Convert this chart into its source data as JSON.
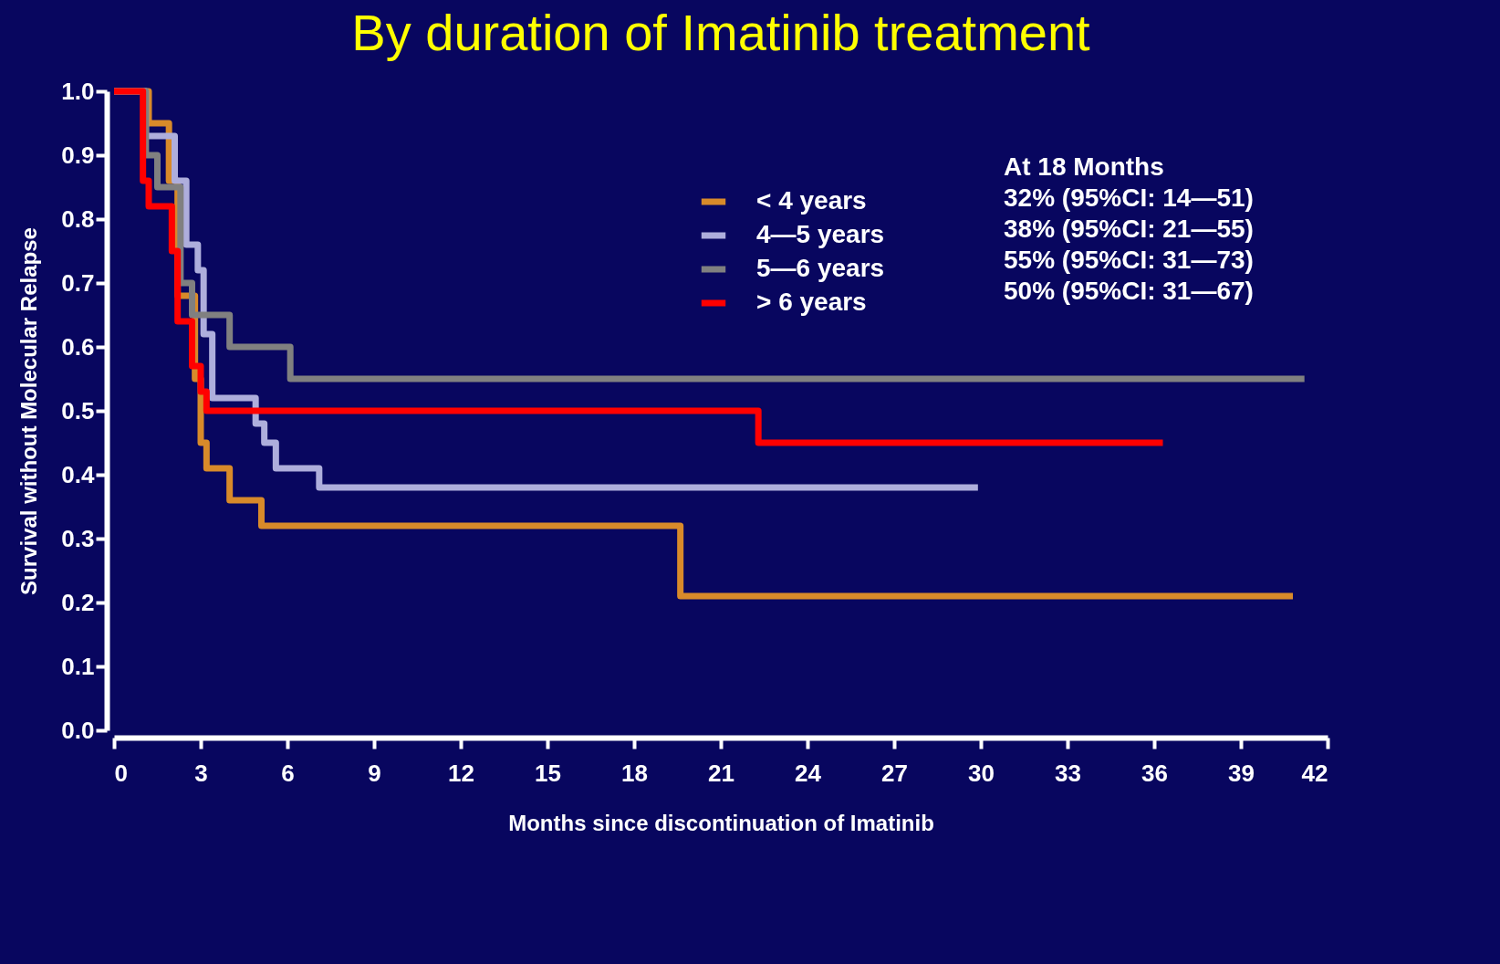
{
  "chart_data": {
    "type": "step",
    "title": "By duration of Imatinib treatment",
    "xlabel": "Months since discontinuation of Imatinib",
    "ylabel": "Survival without Molecular Relapse",
    "xlim": [
      0,
      42
    ],
    "xticks": [
      0,
      3,
      6,
      9,
      12,
      15,
      18,
      21,
      24,
      27,
      30,
      33,
      36,
      39,
      42
    ],
    "ylim": [
      0,
      1
    ],
    "yticks": [
      {
        "value": 0,
        "label": "0.0"
      },
      0.1,
      0.2,
      0.3,
      0.4,
      0.5,
      0.6,
      0.7,
      0.8,
      0.9,
      {
        "value": 1,
        "label": "1.0"
      }
    ],
    "grid": false,
    "legend": "top right",
    "marker": "none",
    "line_style": "solid",
    "annotations": [
      "At 18 Months",
      "32% (95%CI: 14—51)",
      "38% (95%CI: 21—55)",
      "55% (95%CI: 31—73)",
      "50% (95%CI: 31—67)"
    ],
    "series": [
      {
        "name": "< 4 years",
        "color": "#d88a2a",
        "x": [
          0,
          1.2,
          1.9,
          2.2,
          2.8,
          3.0,
          3.2,
          4.0,
          5.1,
          19.6,
          40.8
        ],
        "values": [
          1,
          0.95,
          0.86,
          0.68,
          0.55,
          0.45,
          0.41,
          0.36,
          0.32,
          0.21,
          0.21
        ]
      },
      {
        "name": "4—5 years",
        "color": "#aeaedc",
        "x": [
          0,
          1.1,
          2.1,
          2.5,
          2.9,
          3.1,
          3.4,
          4.9,
          5.2,
          5.6,
          7.1,
          29.9
        ],
        "values": [
          1,
          0.93,
          0.86,
          0.76,
          0.72,
          0.62,
          0.52,
          0.48,
          0.45,
          0.41,
          0.38,
          0.38
        ]
      },
      {
        "name": "5—6 years",
        "color": "#808080",
        "x": [
          0,
          1.1,
          1.5,
          2.3,
          2.7,
          4.0,
          6.1,
          41.2
        ],
        "values": [
          1,
          0.9,
          0.85,
          0.7,
          0.65,
          0.6,
          0.55,
          0.55
        ]
      },
      {
        "name": "> 6 years",
        "color": "#ff0000",
        "x": [
          0,
          1.0,
          1.2,
          2.0,
          2.2,
          2.7,
          3.0,
          3.2,
          22.3,
          36.3
        ],
        "values": [
          1,
          0.86,
          0.82,
          0.75,
          0.64,
          0.57,
          0.53,
          0.5,
          0.45,
          0.45
        ]
      }
    ]
  }
}
